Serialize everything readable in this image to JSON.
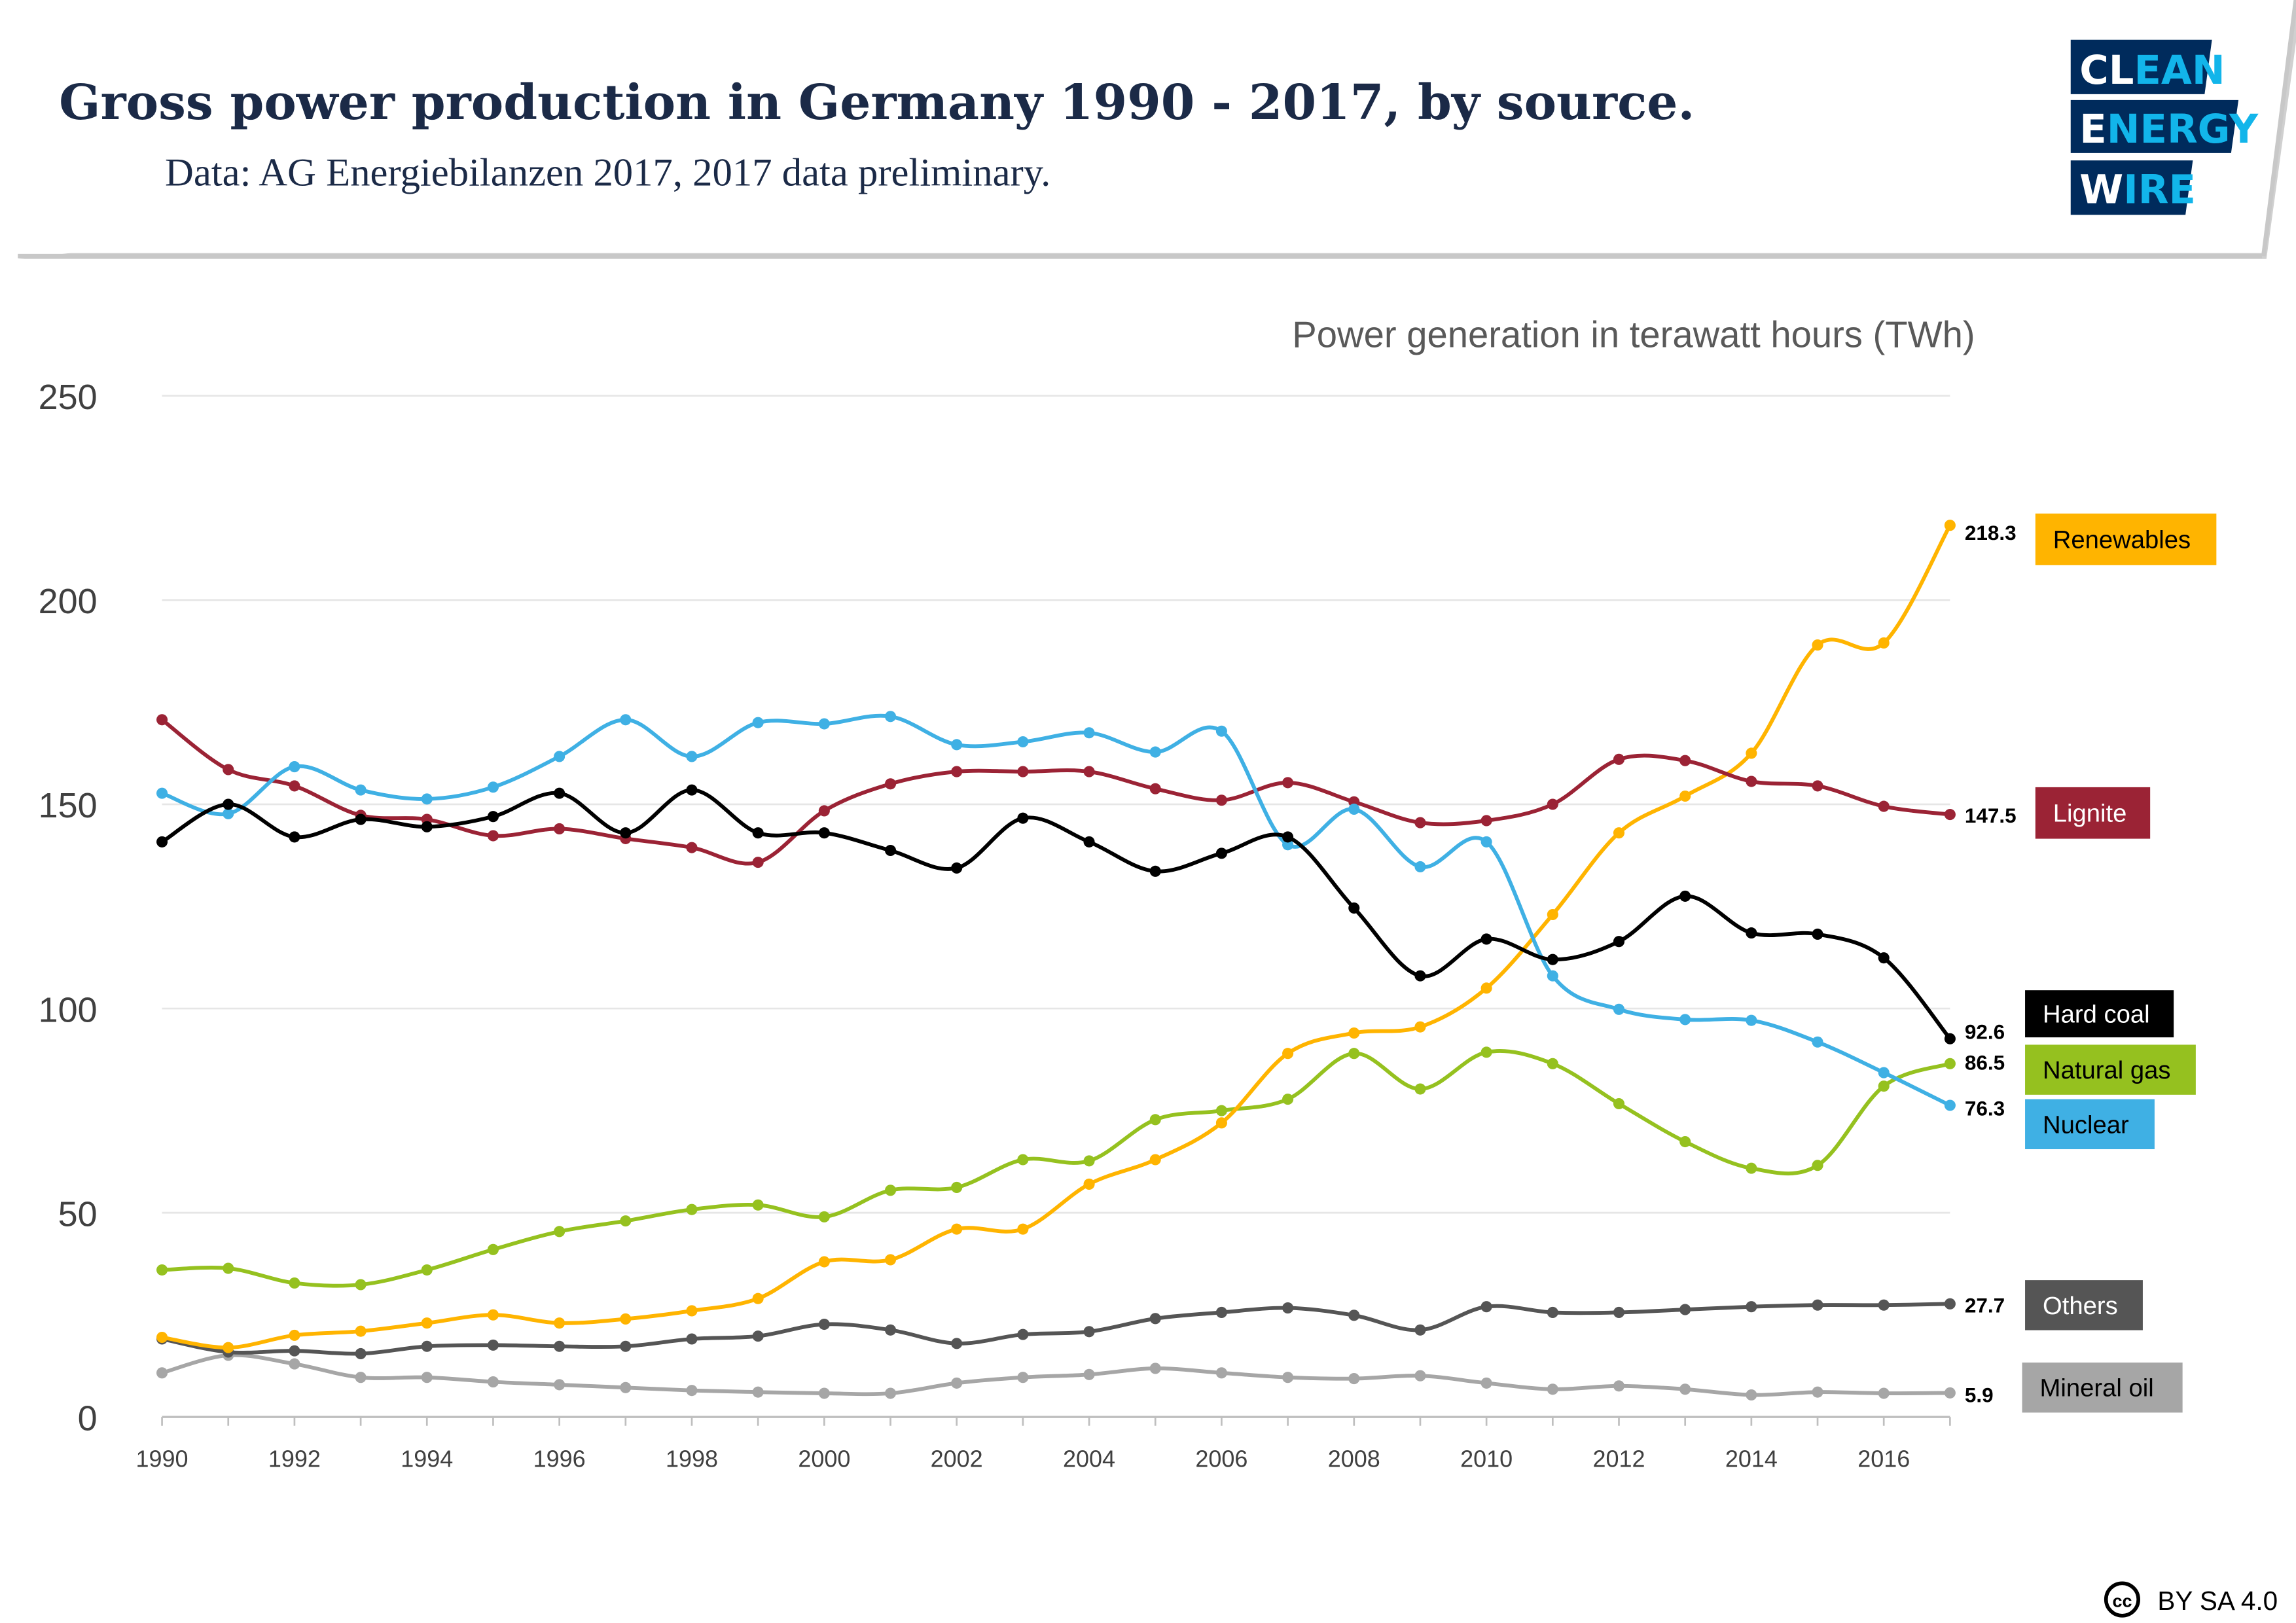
{
  "header": {
    "title": "Gross power production in Germany 1990 - 2017, by source.",
    "subtitle": "Data: AG Energiebilanzen 2017, 2017 data preliminary."
  },
  "logo": {
    "line1": "CLEAN",
    "line2": "ENERGY",
    "line3": "WIRE",
    "navy": "#002b5c",
    "accent": "#12b5ea"
  },
  "license": {
    "icon": "creative-commons-icon",
    "label": "BY SA 4.0"
  },
  "chart_data": {
    "type": "line",
    "title": "",
    "ylabel": "Power generation in terawatt hours (TWh)",
    "xlabel": "",
    "ylim": [
      0,
      250
    ],
    "yticks": [
      "0",
      "50",
      "100",
      "150",
      "200",
      "250"
    ],
    "xticks": [
      "1990",
      "1992",
      "1994",
      "1996",
      "1998",
      "2000",
      "2002",
      "2004",
      "2006",
      "2008",
      "2010",
      "2012",
      "2014",
      "2016"
    ],
    "grid": true,
    "legend": "right, labels at line ends",
    "x": [
      1990,
      1991,
      1992,
      1993,
      1994,
      1995,
      1996,
      1997,
      1998,
      1999,
      2000,
      2001,
      2002,
      2003,
      2004,
      2005,
      2006,
      2007,
      2008,
      2009,
      2010,
      2011,
      2012,
      2013,
      2014,
      2015,
      2016,
      2017
    ],
    "series": [
      {
        "name": "Renewables",
        "color": "#ffb400",
        "text_color": "#000000",
        "end_label": "218.3",
        "values": [
          19.5,
          17,
          20,
          21,
          23,
          25,
          23,
          24,
          26,
          29,
          38,
          38.5,
          46,
          46,
          57,
          63,
          72,
          89,
          94,
          95.5,
          105,
          123,
          143,
          152,
          162.5,
          189,
          189.5,
          218.3
        ]
      },
      {
        "name": "Lignite",
        "color": "#9b2335",
        "text_color": "#ffffff",
        "end_label": "147.5",
        "values": [
          170.7,
          158.5,
          154.5,
          147.3,
          146.3,
          142.3,
          144,
          141.6,
          139.4,
          135.8,
          148.4,
          155,
          158,
          158,
          158,
          153.8,
          151,
          155.3,
          150.6,
          145.5,
          146,
          150,
          161,
          160.7,
          155.6,
          154.5,
          149.5,
          147.5
        ]
      },
      {
        "name": "Hard coal",
        "color": "#000000",
        "text_color": "#ffffff",
        "end_label": "92.6",
        "values": [
          140.8,
          150,
          142,
          146.3,
          144.5,
          147,
          152.7,
          143,
          153.5,
          143,
          143,
          138.7,
          134.4,
          146.6,
          140.8,
          133.6,
          138,
          142,
          124.6,
          108,
          117,
          112,
          116.4,
          127.5,
          118.5,
          118.2,
          112.4,
          92.6
        ]
      },
      {
        "name": "Natural gas",
        "color": "#95c11f",
        "text_color": "#000000",
        "end_label": "86.5",
        "values": [
          36,
          36.4,
          32.8,
          32.4,
          36,
          41,
          45.4,
          48,
          50.8,
          51.9,
          49,
          55.5,
          56.2,
          63,
          62.7,
          72.8,
          75,
          77.8,
          89,
          80.3,
          89.3,
          86.5,
          76.7,
          67.4,
          60.9,
          61.6,
          81,
          86.5
        ]
      },
      {
        "name": "Nuclear",
        "color": "#3fb0e4",
        "text_color": "#000000",
        "end_label": "76.3",
        "values": [
          152.7,
          147.7,
          159.2,
          153.5,
          151.3,
          154.2,
          161.7,
          170.7,
          161.7,
          170,
          169.7,
          171.5,
          164.6,
          165.3,
          167.5,
          162.8,
          167.9,
          140.1,
          148.8,
          134.7,
          140.8,
          108,
          99.8,
          97.3,
          97.1,
          91.8,
          84.3,
          76.3
        ]
      },
      {
        "name": "Others",
        "color": "#555555",
        "text_color": "#ffffff",
        "end_label": "27.7",
        "values": [
          19.1,
          15.9,
          16.2,
          15.5,
          17.3,
          17.6,
          17.3,
          17.3,
          19.1,
          19.8,
          22.7,
          21.3,
          18,
          20.2,
          20.9,
          24.1,
          25.6,
          26.7,
          24.9,
          21.3,
          27,
          25.6,
          25.6,
          26.3,
          27,
          27.4,
          27.4,
          27.7
        ]
      },
      {
        "name": "Mineral oil",
        "color": "#a6a6a6",
        "text_color": "#000000",
        "end_label": "5.9",
        "values": [
          10.8,
          15.1,
          13,
          9.7,
          9.7,
          8.6,
          7.9,
          7.2,
          6.5,
          6.1,
          5.8,
          5.8,
          8.3,
          9.7,
          10.4,
          11.9,
          10.8,
          9.7,
          9.4,
          10.1,
          8.3,
          6.8,
          7.6,
          6.8,
          5.4,
          6.1,
          5.8,
          5.9
        ]
      }
    ]
  }
}
